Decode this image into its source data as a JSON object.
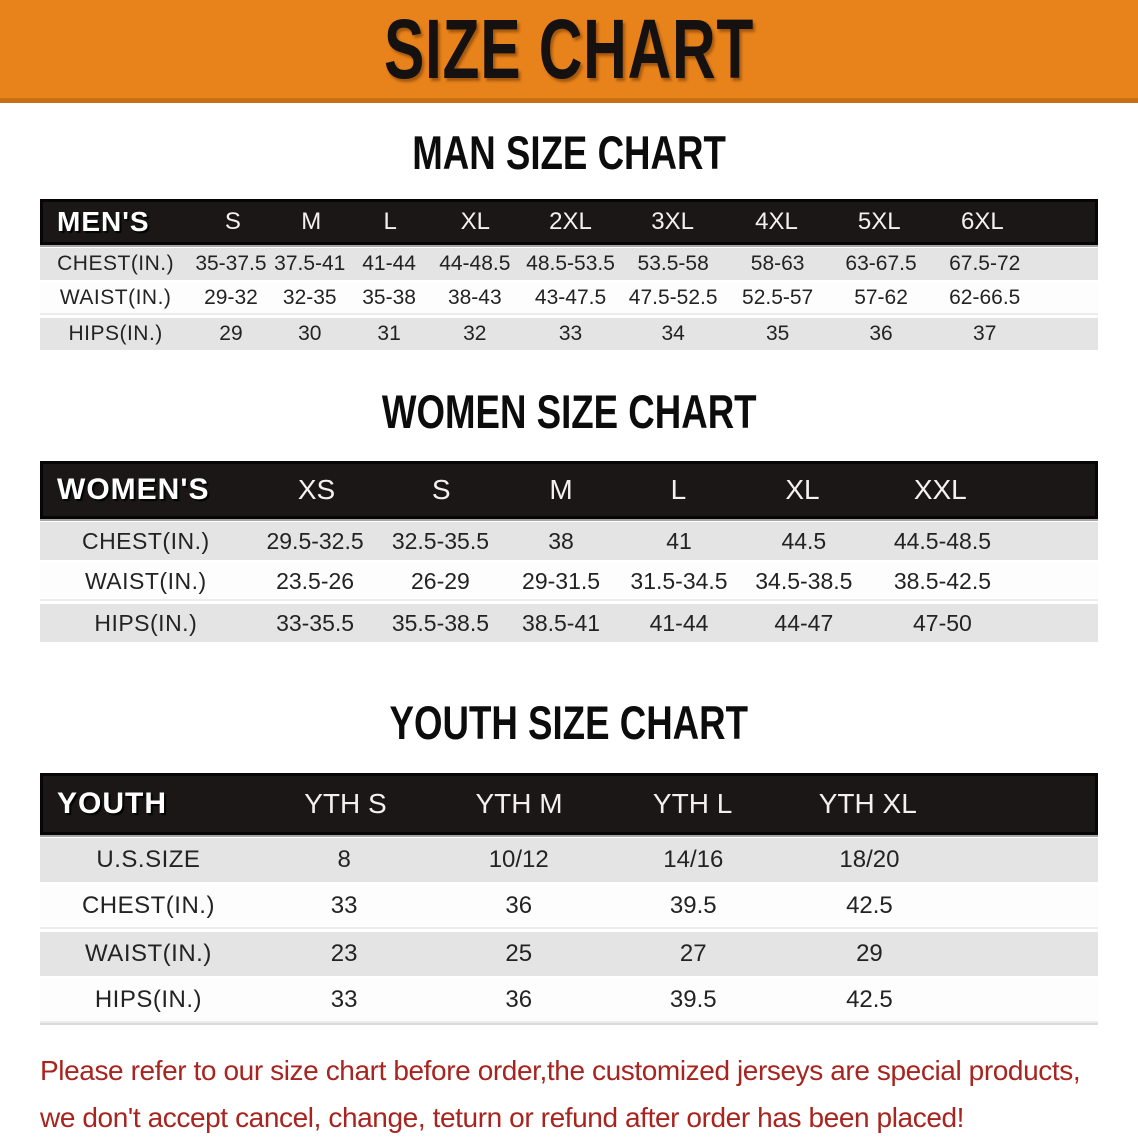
{
  "banner": {
    "title": "SIZE CHART",
    "bg_color": "#e8821a",
    "edge_color": "#c76f12",
    "text_color": "#141110"
  },
  "chart_data": [
    {
      "type": "table",
      "id": "men",
      "title": "MAN SIZE CHART",
      "header_label": "MEN'S",
      "columns": [
        "S",
        "M",
        "L",
        "XL",
        "2XL",
        "3XL",
        "4XL",
        "5XL",
        "6XL"
      ],
      "rows": [
        {
          "label": "CHEST(IN.)",
          "values": [
            "35-37.5",
            "37.5-41",
            "41-44",
            "44-48.5",
            "48.5-53.5",
            "53.5-58",
            "58-63",
            "63-67.5",
            "67.5-72"
          ]
        },
        {
          "label": "WAIST(IN.)",
          "values": [
            "29-32",
            "32-35",
            "35-38",
            "38-43",
            "43-47.5",
            "47.5-52.5",
            "52.5-57",
            "57-62",
            "62-66.5"
          ]
        },
        {
          "label": "HIPS(IN.)",
          "values": [
            "29",
            "30",
            "31",
            "32",
            "33",
            "34",
            "35",
            "36",
            "37"
          ]
        }
      ]
    },
    {
      "type": "table",
      "id": "women",
      "title": "WOMEN SIZE CHART",
      "header_label": "WOMEN'S",
      "columns": [
        "XS",
        "S",
        "M",
        "L",
        "XL",
        "XXL"
      ],
      "rows": [
        {
          "label": "CHEST(IN.)",
          "values": [
            "29.5-32.5",
            "32.5-35.5",
            "38",
            "41",
            "44.5",
            "44.5-48.5"
          ]
        },
        {
          "label": "WAIST(IN.)",
          "values": [
            "23.5-26",
            "26-29",
            "29-31.5",
            "31.5-34.5",
            "34.5-38.5",
            "38.5-42.5"
          ]
        },
        {
          "label": "HIPS(IN.)",
          "values": [
            "33-35.5",
            "35.5-38.5",
            "38.5-41",
            "41-44",
            "44-47",
            "47-50"
          ]
        }
      ]
    },
    {
      "type": "table",
      "id": "youth",
      "title": "YOUTH SIZE CHART",
      "header_label": "YOUTH",
      "columns": [
        "YTH S",
        "YTH M",
        "YTH L",
        "YTH XL"
      ],
      "rows": [
        {
          "label": "U.S.SIZE",
          "values": [
            "8",
            "10/12",
            "14/16",
            "18/20"
          ]
        },
        {
          "label": "CHEST(IN.)",
          "values": [
            "33",
            "36",
            "39.5",
            "42.5"
          ]
        },
        {
          "label": "WAIST(IN.)",
          "values": [
            "23",
            "25",
            "27",
            "29"
          ]
        },
        {
          "label": "HIPS(IN.)",
          "values": [
            "33",
            "36",
            "39.5",
            "42.5"
          ]
        }
      ]
    }
  ],
  "disclaimer": {
    "lines": [
      "Please refer to our size chart before order,the customized jerseys are special products,",
      "we don't accept cancel, change, teturn or refund after order has been placed!"
    ],
    "color": "#a8241f"
  }
}
